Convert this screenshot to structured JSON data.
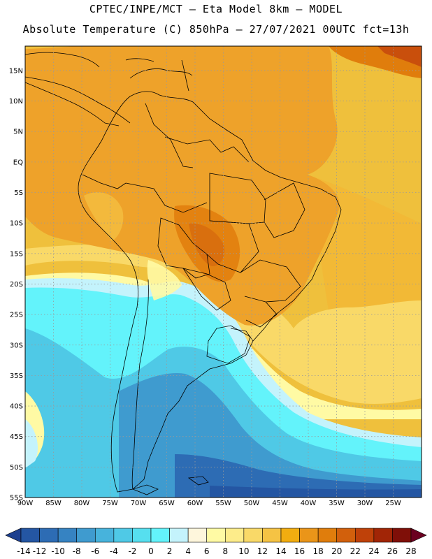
{
  "title": {
    "line1": "CPTEC/INPE/MCT –  Eta Model 8km – MODEL",
    "line2": "Absolute Temperature (C) 850hPa – 27/07/2021 00UTC fct=13h"
  },
  "axes": {
    "lat_labels": [
      "15N",
      "10N",
      "5N",
      "EQ",
      "5S",
      "10S",
      "15S",
      "20S",
      "25S",
      "30S",
      "35S",
      "40S",
      "45S",
      "50S",
      "55S"
    ],
    "lat_values": [
      15,
      10,
      5,
      0,
      -5,
      -10,
      -15,
      -20,
      -25,
      -30,
      -35,
      -40,
      -45,
      -50,
      -55
    ],
    "lon_labels": [
      "90W",
      "85W",
      "80W",
      "75W",
      "70W",
      "65W",
      "60W",
      "55W",
      "50W",
      "45W",
      "40W",
      "35W",
      "30W",
      "25W"
    ],
    "lon_values": [
      -90,
      -85,
      -80,
      -75,
      -70,
      -65,
      -60,
      -55,
      -50,
      -45,
      -40,
      -35,
      -30,
      -25
    ],
    "lat_range": [
      -55,
      19
    ],
    "lon_range": [
      -90,
      -20
    ]
  },
  "colorbar": {
    "labels": [
      "-14",
      "-12",
      "-10",
      "-8",
      "-6",
      "-4",
      "-2",
      "0",
      "2",
      "4",
      "6",
      "8",
      "10",
      "12",
      "14",
      "16",
      "18",
      "20",
      "22",
      "24",
      "26",
      "28"
    ],
    "colors": [
      "#1c3f8f",
      "#2456a3",
      "#2d6cb4",
      "#3683c2",
      "#3f9bcf",
      "#47b3dc",
      "#4fc9e6",
      "#56dfef",
      "#63f3fb",
      "#c4f3fc",
      "#fef6dc",
      "#fffaa4",
      "#fdec8a",
      "#f9d968",
      "#f5c344",
      "#f2ad10",
      "#ea9519",
      "#e07d0c",
      "#d2600c",
      "#bf4109",
      "#a12506",
      "#7f0f08",
      "#6b0020"
    ]
  },
  "colors": {
    "ocean_default": "#efc03c",
    "land_default": "#eea22a",
    "borders": "#000000",
    "grid": "#9a9a9a"
  }
}
